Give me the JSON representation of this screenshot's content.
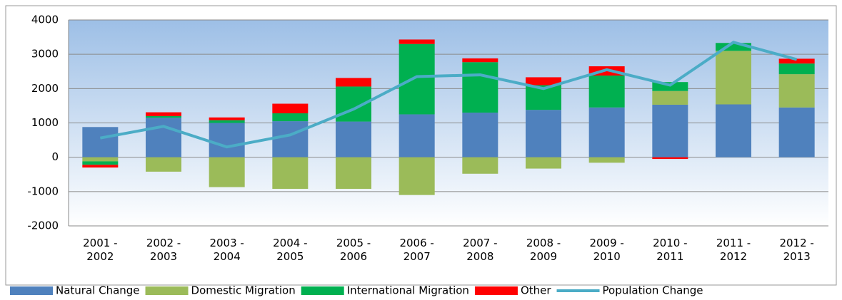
{
  "chart_data": {
    "type": "bar",
    "stacked": true,
    "categories": [
      "2001 - 2002",
      "2002 - 2003",
      "2003 - 2004",
      "2004 - 2005",
      "2005 - 2006",
      "2006 - 2007",
      "2007 - 2008",
      "2008 - 2009",
      "2009 - 2010",
      "2010 - 2011",
      "2011 - 2012",
      "2012 - 2013"
    ],
    "series": [
      {
        "name": "Natural Change",
        "color": "#4f81bd",
        "values": [
          880,
          1150,
          1000,
          1050,
          1040,
          1250,
          1300,
          1380,
          1450,
          1530,
          1540,
          1450
        ]
      },
      {
        "name": "Domestic Migration",
        "color": "#9bbb59",
        "values": [
          -120,
          -420,
          -870,
          -920,
          -920,
          -1100,
          -480,
          -330,
          -160,
          400,
          1560,
          970
        ]
      },
      {
        "name": "International Migration",
        "color": "#00b050",
        "values": [
          -100,
          50,
          80,
          230,
          1020,
          2050,
          1470,
          720,
          930,
          260,
          230,
          310
        ]
      },
      {
        "name": "Other",
        "color": "#ff0000",
        "values": [
          -80,
          110,
          80,
          280,
          250,
          130,
          110,
          230,
          270,
          -50,
          0,
          140
        ]
      },
      {
        "name": "Population Change",
        "color": "#4bacc6",
        "type": "line",
        "values": [
          560,
          900,
          300,
          650,
          1400,
          2350,
          2400,
          2000,
          2550,
          2100,
          3350,
          2850
        ]
      }
    ],
    "ylim": [
      -2000,
      4000
    ],
    "yticks": [
      4000,
      3000,
      2000,
      1000,
      0,
      -1000,
      -2000
    ],
    "grid": true,
    "legend": "bottom"
  }
}
